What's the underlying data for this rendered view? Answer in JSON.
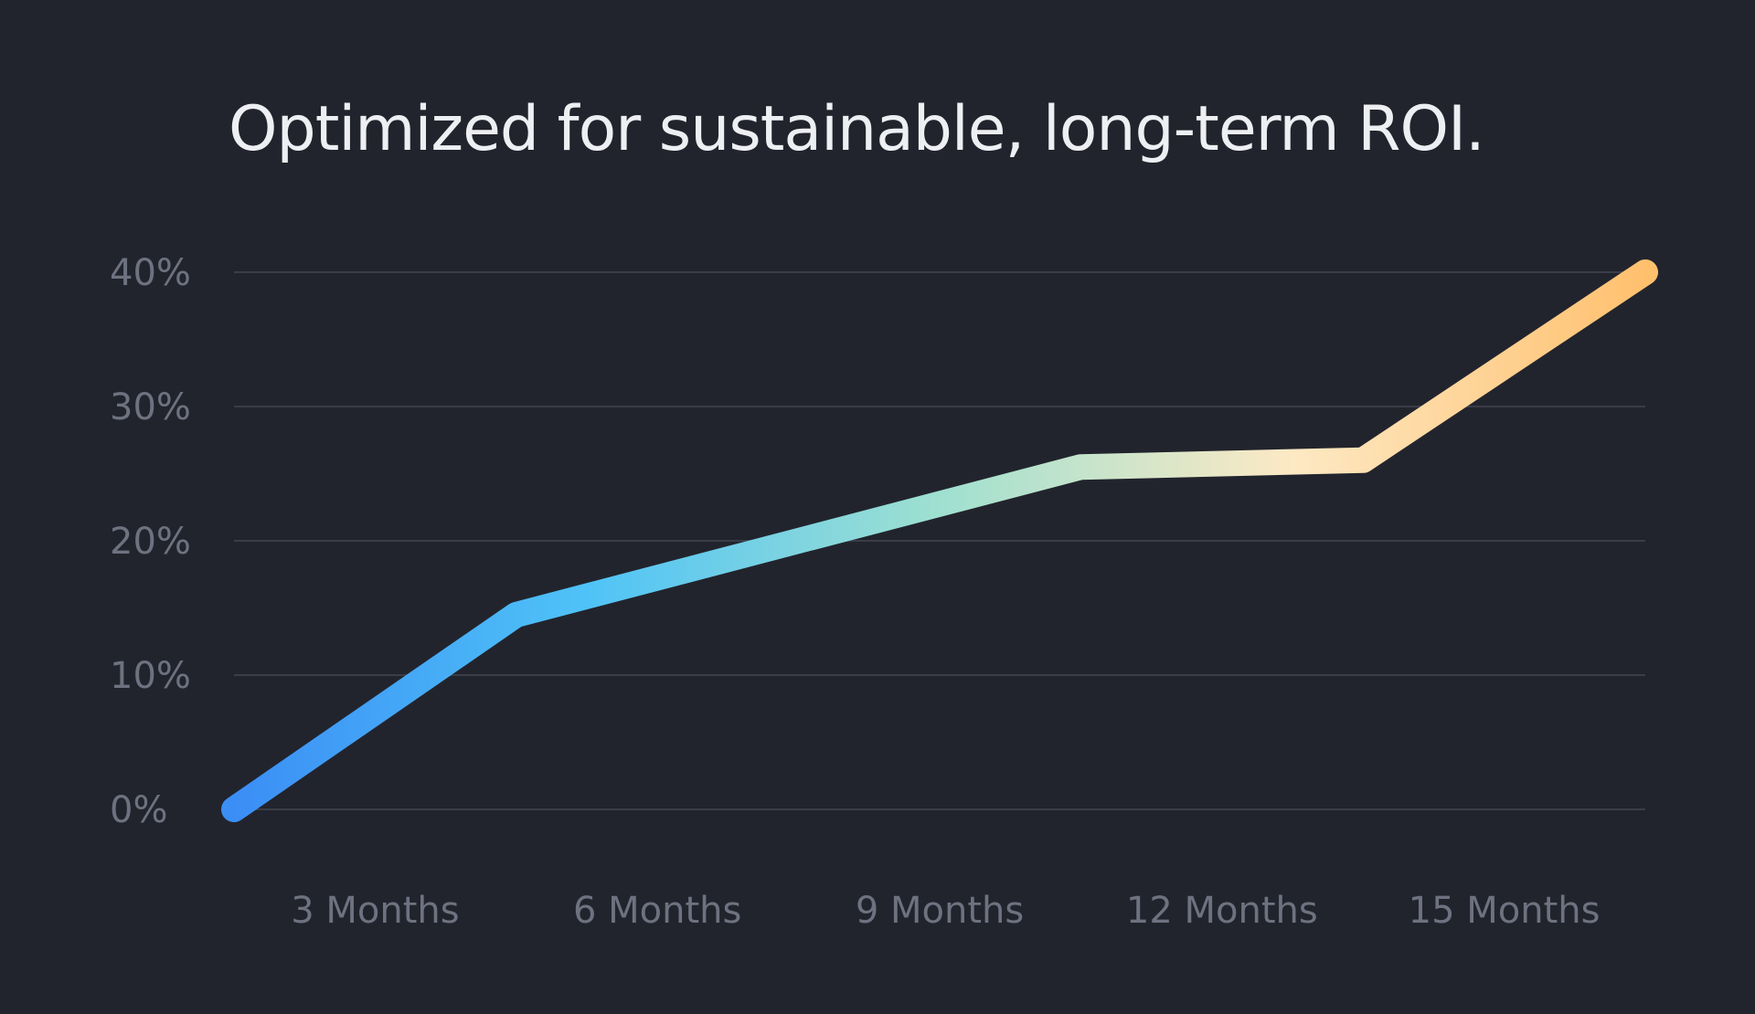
{
  "chart_data": {
    "type": "line",
    "title": "Optimized for sustainable, long-term ROI.",
    "xlabel": "",
    "ylabel": "",
    "categories": [
      "3 Months",
      "6 Months",
      "9 Months",
      "12 Months",
      "15 Months"
    ],
    "x": [
      0,
      3,
      6,
      9,
      12,
      15
    ],
    "y": [
      0,
      14.5,
      20,
      25.5,
      26,
      40
    ],
    "y_ticks": [
      "0%",
      "10%",
      "20%",
      "30%",
      "40%"
    ],
    "ylim": [
      0,
      40
    ],
    "xlim": [
      0,
      15
    ],
    "grid": true,
    "legend": "none",
    "colors": {
      "background": "#22242d",
      "grid": "#3a3d48",
      "tick_text": "#6e7280",
      "title": "#eeeff3",
      "gradient": [
        "#3b8ef5",
        "#4fc3f7",
        "#9fe0d0",
        "#fde9c4",
        "#ffc06e"
      ]
    }
  }
}
